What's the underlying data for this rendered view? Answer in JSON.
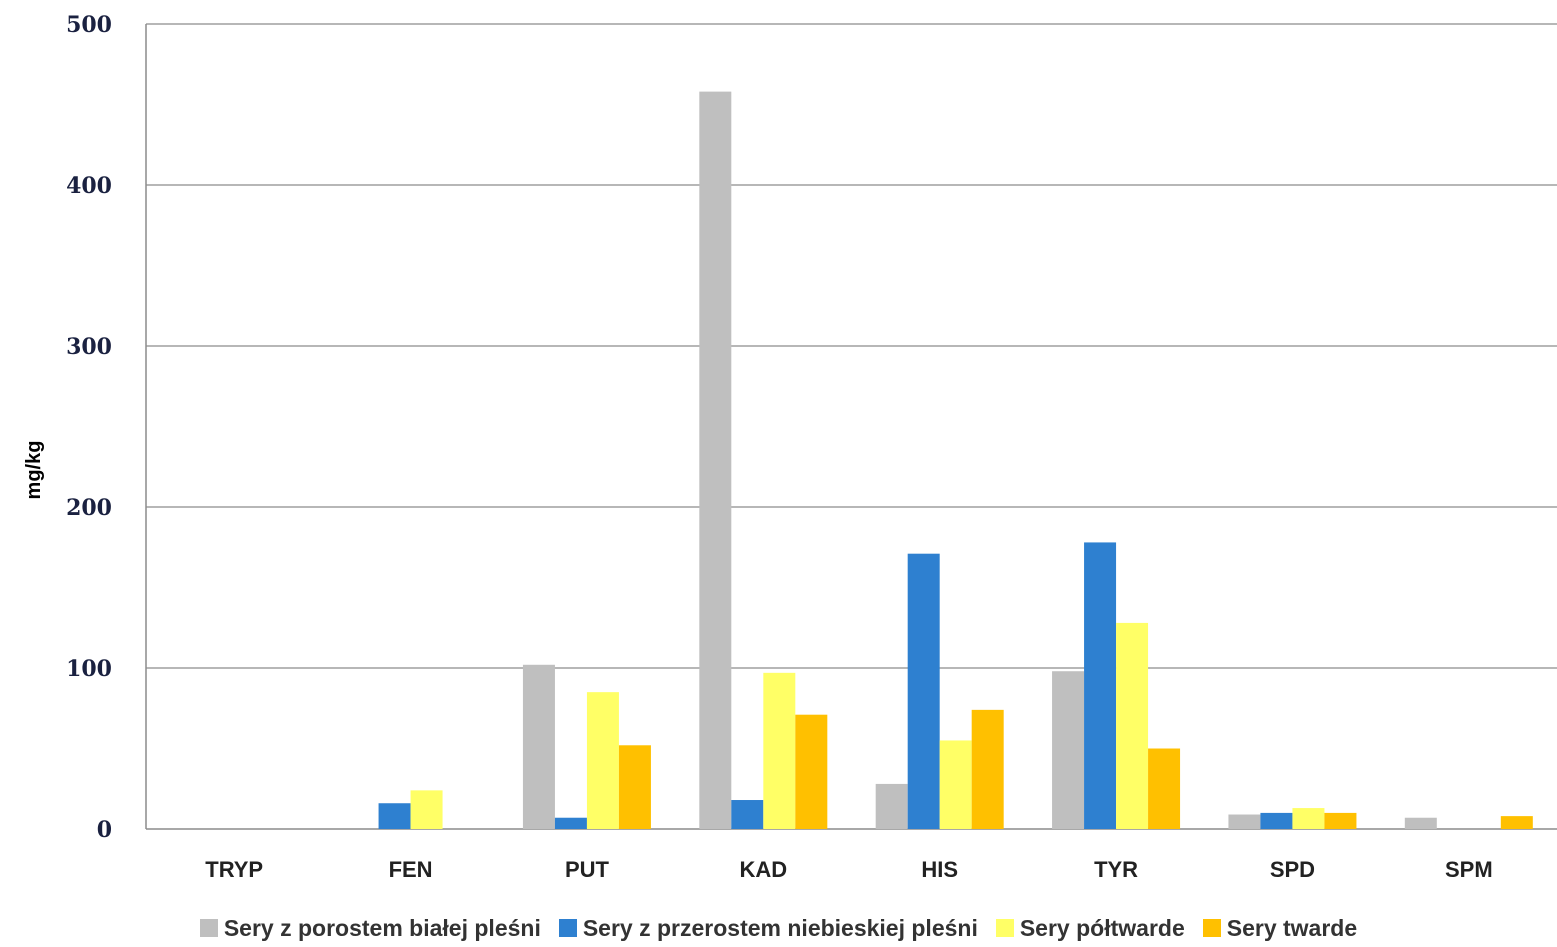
{
  "chart_data": {
    "type": "bar",
    "title": "",
    "xlabel": "",
    "ylabel": "mg/kg",
    "ylim": [
      0,
      500
    ],
    "yticks": [
      0,
      100,
      200,
      300,
      400,
      500
    ],
    "categories": [
      "TRYP",
      "FEN",
      "PUT",
      "KAD",
      "HIS",
      "TYR",
      "SPD",
      "SPM"
    ],
    "series": [
      {
        "name": "Sery z porostem białej pleśni",
        "color": "#bfbfbf",
        "values": [
          0,
          0,
          102,
          458,
          28,
          98,
          9,
          7
        ]
      },
      {
        "name": "Sery z przerostem niebieskiej pleśni",
        "color": "#2e80d0",
        "values": [
          0,
          16,
          7,
          18,
          171,
          178,
          10,
          0
        ]
      },
      {
        "name": "Sery półtwarde",
        "color": "#ffff66",
        "values": [
          0,
          24,
          85,
          97,
          55,
          128,
          13,
          0
        ]
      },
      {
        "name": "Sery twarde",
        "color": "#ffc000",
        "values": [
          0,
          0,
          52,
          71,
          74,
          50,
          10,
          8
        ]
      }
    ],
    "grid": true,
    "legend_position": "bottom"
  }
}
